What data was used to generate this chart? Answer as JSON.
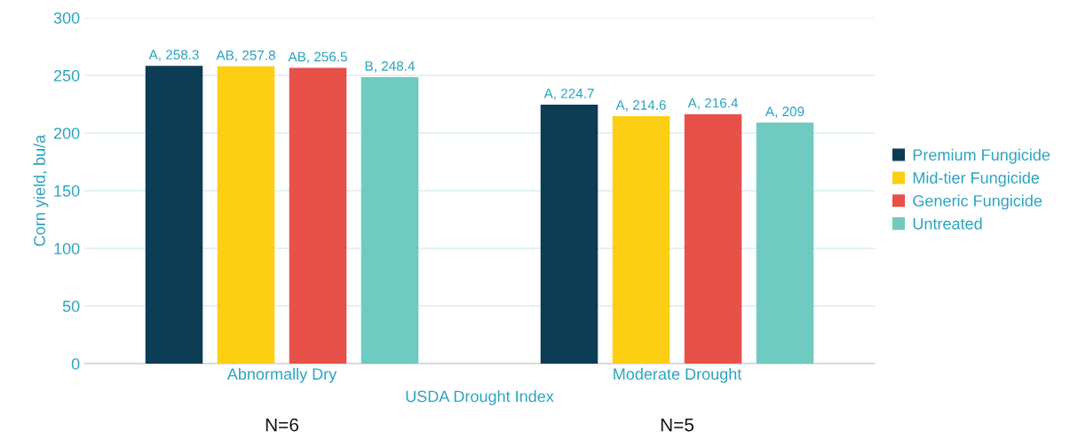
{
  "chart_data": {
    "type": "bar",
    "xlabel": "USDA Drought Index",
    "ylabel": "Corn yield, bu/a",
    "categories": [
      "Abnormally Dry",
      "Moderate Drought"
    ],
    "series": [
      {
        "name": "Premium Fungicide",
        "color": "#0d3c55",
        "values": [
          258.3,
          224.7
        ],
        "value_labels": [
          "A, 258.3",
          "A, 224.7"
        ]
      },
      {
        "name": "Mid-tier Fungicide",
        "color": "#fccf14",
        "values": [
          257.8,
          214.6
        ],
        "value_labels": [
          "AB, 257.8",
          "A, 214.6"
        ]
      },
      {
        "name": "Generic Fungicide",
        "color": "#e8504a",
        "values": [
          256.5,
          216.4
        ],
        "value_labels": [
          "AB, 256.5",
          "A, 216.4"
        ]
      },
      {
        "name": "Untreated",
        "color": "#6fcac0",
        "values": [
          248.4,
          209
        ],
        "value_labels": [
          "B, 248.4",
          "A, 209"
        ]
      }
    ],
    "ylim": [
      0,
      300
    ],
    "yticks": [
      0,
      50,
      100,
      150,
      200,
      250,
      300
    ],
    "grid": "y",
    "legend": "right",
    "annotations": [
      "N=6",
      "N=5"
    ]
  }
}
